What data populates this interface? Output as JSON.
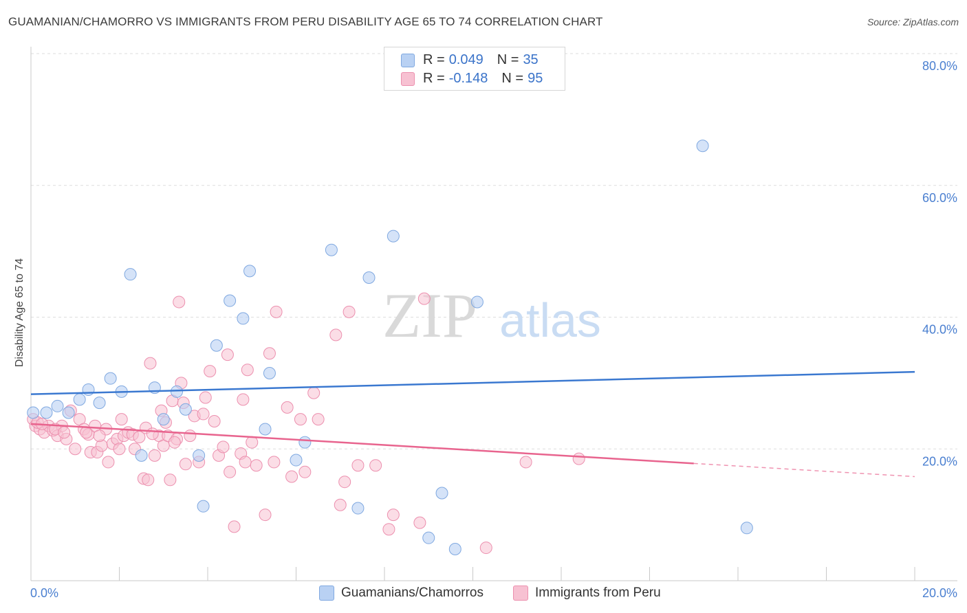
{
  "title": "GUAMANIAN/CHAMORRO VS IMMIGRANTS FROM PERU DISABILITY AGE 65 TO 74 CORRELATION CHART",
  "source": "Source: ZipAtlas.com",
  "watermark": {
    "zip": "ZIP",
    "atlas": "atlas"
  },
  "legend": {
    "rows": [
      {
        "r_label": "R =",
        "r_value": "0.049",
        "n_label": "N =",
        "n_value": "35"
      },
      {
        "r_label": "R =",
        "r_value": "-0.148",
        "n_label": "N =",
        "n_value": "95"
      }
    ]
  },
  "colors": {
    "blue_fill": "#b9d1f3",
    "blue_stroke": "#7fa8e0",
    "blue_line": "#3a78d0",
    "pink_fill": "#f7c1d2",
    "pink_stroke": "#ec8fae",
    "pink_line": "#e8648e",
    "grid": "#dddddd",
    "axis_text": "#4a7fd0"
  },
  "chart_data": {
    "type": "scatter",
    "title": "GUAMANIAN/CHAMORRO VS IMMIGRANTS FROM PERU DISABILITY AGE 65 TO 74 CORRELATION CHART",
    "xlabel": "",
    "ylabel": "Disability Age 65 to 74",
    "xlim": [
      0,
      20
    ],
    "ylim": [
      0,
      80
    ],
    "x_ticks": [
      "0.0%",
      "20.0%"
    ],
    "y_ticks": [
      "20.0%",
      "40.0%",
      "60.0%",
      "80.0%"
    ],
    "y_tick_values": [
      20,
      40,
      60,
      80
    ],
    "series": [
      {
        "name": "Guamanians/Chamorros",
        "color": "#b9d1f3",
        "trend": {
          "x": [
            0,
            20
          ],
          "y": [
            28.3,
            31.7
          ]
        },
        "points": [
          [
            0.05,
            25.5
          ],
          [
            0.35,
            25.5
          ],
          [
            0.6,
            26.5
          ],
          [
            0.85,
            25.5
          ],
          [
            1.1,
            27.5
          ],
          [
            1.3,
            29.0
          ],
          [
            1.55,
            27.0
          ],
          [
            1.8,
            30.7
          ],
          [
            2.05,
            28.7
          ],
          [
            2.25,
            46.5
          ],
          [
            2.5,
            19.0
          ],
          [
            2.8,
            29.3
          ],
          [
            3.0,
            24.5
          ],
          [
            3.3,
            28.7
          ],
          [
            3.5,
            26.0
          ],
          [
            3.8,
            19.0
          ],
          [
            3.9,
            11.3
          ],
          [
            4.2,
            35.7
          ],
          [
            4.5,
            42.5
          ],
          [
            4.8,
            39.8
          ],
          [
            4.95,
            47.0
          ],
          [
            5.3,
            23.0
          ],
          [
            5.4,
            31.5
          ],
          [
            6.0,
            18.3
          ],
          [
            6.2,
            21.0
          ],
          [
            6.8,
            50.2
          ],
          [
            7.4,
            11.0
          ],
          [
            7.65,
            46.0
          ],
          [
            8.2,
            52.3
          ],
          [
            9.0,
            6.5
          ],
          [
            9.3,
            13.3
          ],
          [
            9.6,
            4.8
          ],
          [
            10.1,
            42.3
          ],
          [
            15.2,
            66.0
          ],
          [
            16.2,
            8.0
          ]
        ]
      },
      {
        "name": "Immigrants from Peru",
        "color": "#f7c1d2",
        "trend": {
          "x": [
            0,
            15
          ],
          "y": [
            23.8,
            17.8
          ]
        },
        "trend_dashed": {
          "x": [
            15,
            20
          ],
          "y": [
            17.8,
            15.8
          ]
        },
        "points": [
          [
            0.05,
            24.5
          ],
          [
            0.1,
            23.5
          ],
          [
            0.2,
            23.0
          ],
          [
            0.3,
            22.5
          ],
          [
            0.4,
            23.5
          ],
          [
            0.5,
            22.8
          ],
          [
            0.6,
            22.0
          ],
          [
            0.7,
            23.5
          ],
          [
            0.8,
            21.5
          ],
          [
            0.9,
            25.8
          ],
          [
            1.0,
            20.0
          ],
          [
            1.1,
            24.5
          ],
          [
            1.2,
            23.0
          ],
          [
            1.3,
            22.2
          ],
          [
            1.35,
            19.5
          ],
          [
            1.45,
            23.5
          ],
          [
            1.5,
            19.5
          ],
          [
            1.6,
            20.5
          ],
          [
            1.7,
            23.0
          ],
          [
            1.75,
            18.0
          ],
          [
            1.85,
            20.8
          ],
          [
            1.95,
            21.5
          ],
          [
            2.0,
            20.0
          ],
          [
            2.1,
            22.0
          ],
          [
            2.2,
            22.5
          ],
          [
            2.3,
            22.2
          ],
          [
            2.35,
            20.0
          ],
          [
            2.45,
            21.8
          ],
          [
            2.55,
            15.5
          ],
          [
            2.6,
            23.2
          ],
          [
            2.65,
            15.3
          ],
          [
            2.7,
            33.0
          ],
          [
            2.8,
            19.0
          ],
          [
            2.9,
            22.0
          ],
          [
            2.95,
            25.8
          ],
          [
            3.0,
            20.5
          ],
          [
            3.05,
            24.0
          ],
          [
            3.1,
            22.0
          ],
          [
            3.15,
            15.3
          ],
          [
            3.2,
            27.3
          ],
          [
            3.3,
            21.5
          ],
          [
            3.35,
            42.3
          ],
          [
            3.4,
            30.0
          ],
          [
            3.45,
            27.0
          ],
          [
            3.5,
            17.7
          ],
          [
            3.6,
            22.0
          ],
          [
            3.7,
            25.0
          ],
          [
            3.8,
            18.0
          ],
          [
            3.9,
            25.3
          ],
          [
            3.95,
            27.8
          ],
          [
            4.05,
            31.8
          ],
          [
            4.15,
            24.2
          ],
          [
            4.25,
            19.0
          ],
          [
            4.35,
            20.3
          ],
          [
            4.45,
            34.3
          ],
          [
            4.5,
            16.5
          ],
          [
            4.6,
            8.2
          ],
          [
            4.75,
            19.3
          ],
          [
            4.8,
            27.5
          ],
          [
            4.85,
            18.0
          ],
          [
            4.9,
            32.0
          ],
          [
            5.0,
            21.0
          ],
          [
            5.1,
            17.5
          ],
          [
            5.3,
            10.0
          ],
          [
            5.4,
            34.5
          ],
          [
            5.5,
            18.0
          ],
          [
            5.55,
            40.8
          ],
          [
            5.8,
            26.3
          ],
          [
            5.9,
            15.8
          ],
          [
            6.1,
            24.5
          ],
          [
            6.2,
            16.5
          ],
          [
            6.4,
            28.5
          ],
          [
            6.5,
            24.5
          ],
          [
            6.9,
            37.3
          ],
          [
            7.0,
            11.5
          ],
          [
            7.1,
            15.0
          ],
          [
            7.2,
            40.8
          ],
          [
            7.4,
            17.5
          ],
          [
            8.1,
            7.8
          ],
          [
            8.2,
            10.0
          ],
          [
            8.8,
            8.8
          ],
          [
            8.9,
            42.8
          ],
          [
            10.3,
            5.0
          ],
          [
            11.2,
            18.0
          ],
          [
            12.4,
            18.5
          ],
          [
            7.8,
            17.5
          ],
          [
            0.55,
            23.0
          ],
          [
            1.25,
            22.5
          ],
          [
            2.05,
            24.5
          ],
          [
            0.75,
            22.5
          ],
          [
            0.15,
            24.0
          ],
          [
            0.25,
            23.8
          ],
          [
            1.55,
            22.0
          ],
          [
            3.25,
            21.0
          ],
          [
            2.75,
            22.3
          ]
        ]
      }
    ]
  },
  "bottom_legend": {
    "items": [
      {
        "label": "Guamanians/Chamorros"
      },
      {
        "label": "Immigrants from Peru"
      }
    ]
  }
}
